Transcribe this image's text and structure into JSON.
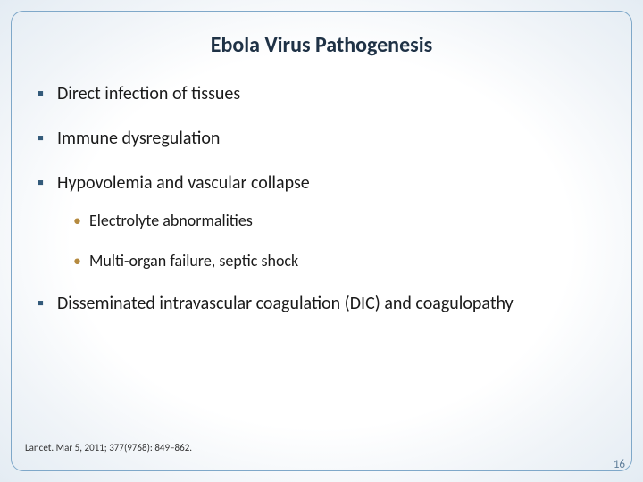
{
  "colors": {
    "frame_border": "#7fa8c9",
    "title_color": "#1f3246",
    "body_color": "#1a1a1a",
    "bullet1_color": "#335a7a",
    "bullet2_color": "#b58a3f",
    "citation_color": "#333333",
    "pagenum_color": "#5e7d99"
  },
  "typography": {
    "title_fontsize": 24,
    "l1_fontsize": 20,
    "l2_fontsize": 18,
    "citation_fontsize": 11,
    "pagenum_fontsize": 13,
    "bullet1_char": "▪",
    "bullet2_char": "•"
  },
  "spacing": {
    "gap_after_l1": 24,
    "gap_after_l2": 22,
    "gap_after_l1_tight": 18
  },
  "title": "Ebola Virus Pathogenesis",
  "bullets": {
    "b1": "Direct infection of tissues",
    "b2": "Immune dysregulation",
    "b3": "Hypovolemia and vascular collapse",
    "b3a": "Electrolyte abnormalities",
    "b3b": "Multi-organ failure, septic shock",
    "b4": "Disseminated intravascular coagulation (DIC) and coagulopathy"
  },
  "citation": "Lancet. Mar 5, 2011; 377(9768): 849–862.",
  "pagenum": "16"
}
